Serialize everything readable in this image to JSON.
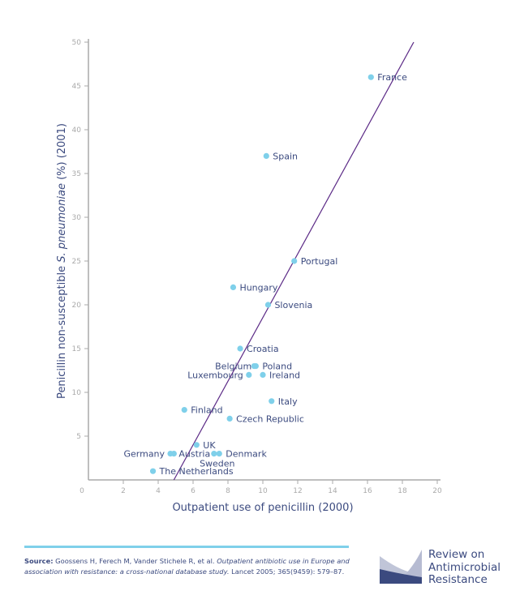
{
  "chart_data": {
    "type": "scatter",
    "xlabel": "Outpatient use of penicillin (2000)",
    "ylabel_parts": [
      "Penicillin non-susceptible ",
      "S. pneumoniae",
      " (%) (2001)"
    ],
    "xlim": [
      0,
      20
    ],
    "ylim": [
      0,
      50
    ],
    "xticks": [
      0,
      2,
      4,
      6,
      8,
      10,
      12,
      14,
      16,
      18,
      20
    ],
    "yticks": [
      5,
      10,
      15,
      20,
      25,
      30,
      35,
      40,
      45,
      50
    ],
    "grid": false,
    "point_color": "#7fd0ea",
    "line_color": "#5b2a86",
    "trendline": {
      "x": [
        4.9,
        18.65
      ],
      "y": [
        0,
        50
      ]
    },
    "points": [
      {
        "label": "France",
        "x": 16.2,
        "y": 46
      },
      {
        "label": "Spain",
        "x": 10.2,
        "y": 37
      },
      {
        "label": "Portugal",
        "x": 11.8,
        "y": 25
      },
      {
        "label": "Hungary",
        "x": 8.3,
        "y": 22
      },
      {
        "label": "Slovenia",
        "x": 10.3,
        "y": 20
      },
      {
        "label": "Croatia",
        "x": 8.7,
        "y": 15
      },
      {
        "label": "Belgium",
        "x": 9.5,
        "y": 13
      },
      {
        "label": "Poland",
        "x": 9.6,
        "y": 13
      },
      {
        "label": "Luxembourg",
        "x": 9.2,
        "y": 12
      },
      {
        "label": "Ireland",
        "x": 10.0,
        "y": 12
      },
      {
        "label": "Italy",
        "x": 10.5,
        "y": 9
      },
      {
        "label": "Finland",
        "x": 5.5,
        "y": 8
      },
      {
        "label": "Czech Republic",
        "x": 8.1,
        "y": 7
      },
      {
        "label": "UK",
        "x": 6.2,
        "y": 4
      },
      {
        "label": "Germany",
        "x": 4.7,
        "y": 3
      },
      {
        "label": "Austria",
        "x": 4.9,
        "y": 3
      },
      {
        "label": "Sweden",
        "x": 7.2,
        "y": 3
      },
      {
        "label": "Denmark",
        "x": 7.5,
        "y": 3
      },
      {
        "label": "The Netherlands",
        "x": 3.7,
        "y": 1
      }
    ]
  },
  "source": {
    "prefix": "Source:",
    "authors": " Goossens H, Ferech M, Vander Stichele R, et al. ",
    "title": "Outpatient antibiotic use in Europe and association with resistance: a cross-national database study.",
    "citation": " Lancet 2005; 365(9459): 579–87."
  },
  "logo": {
    "line1": "Review on",
    "line2": "Antimicrobial",
    "line3": "Resistance"
  }
}
